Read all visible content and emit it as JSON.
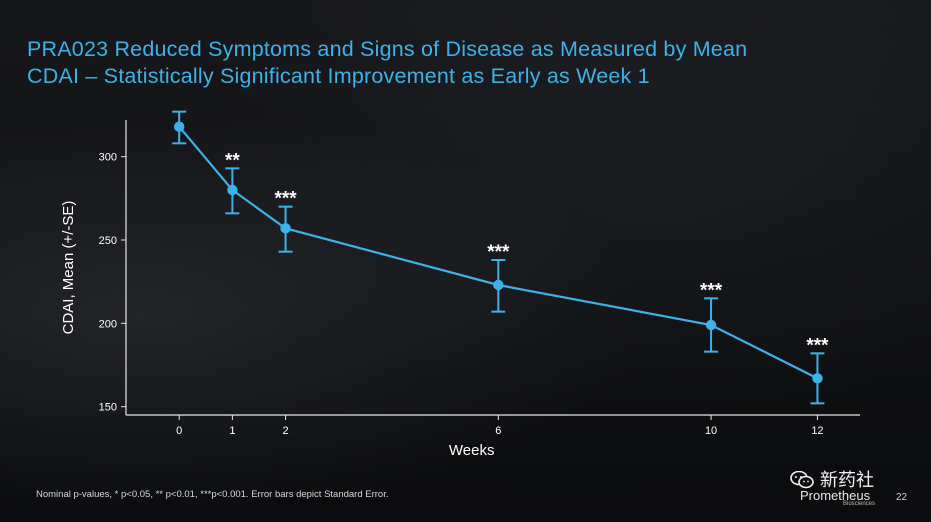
{
  "slide": {
    "title_line1": "PRA023 Reduced Symptoms and Signs of Disease as Measured by Mean",
    "title_line2": "CDAI – Statistically Significant Improvement as Early as Week 1",
    "footnote": "Nominal p-values, * p<0.05, ** p<0.01, ***p<0.001. Error bars depict Standard Error.",
    "brand_name": "Prometheus",
    "brand_sub": "Biosciences",
    "page_number": "22",
    "watermark_text": "新药社",
    "watermark_icon": "wechat-icon"
  },
  "colors": {
    "accent": "#3fb1ea",
    "series": "#3fb1ea",
    "axis": "#e6e6e6",
    "text": "#ffffff"
  },
  "chart_data": {
    "type": "line",
    "title": "",
    "xlabel": "Weeks",
    "ylabel": "CDAI, Mean (+/-SE)",
    "xlim": [
      -1,
      12.8
    ],
    "ylim": [
      145,
      322
    ],
    "x_ticks": [
      0,
      1,
      2,
      6,
      10,
      12
    ],
    "y_ticks": [
      150,
      200,
      250,
      300
    ],
    "grid": false,
    "series": [
      {
        "x": [
          0,
          1,
          2,
          6,
          10,
          12
        ],
        "y": [
          318,
          280,
          257,
          223,
          199,
          167
        ],
        "se_upper": [
          327,
          293,
          270,
          238,
          215,
          182
        ],
        "se_lower": [
          308,
          266,
          243,
          207,
          183,
          152
        ],
        "significance": [
          "",
          "**",
          "***",
          "***",
          "***",
          "***"
        ]
      }
    ]
  }
}
